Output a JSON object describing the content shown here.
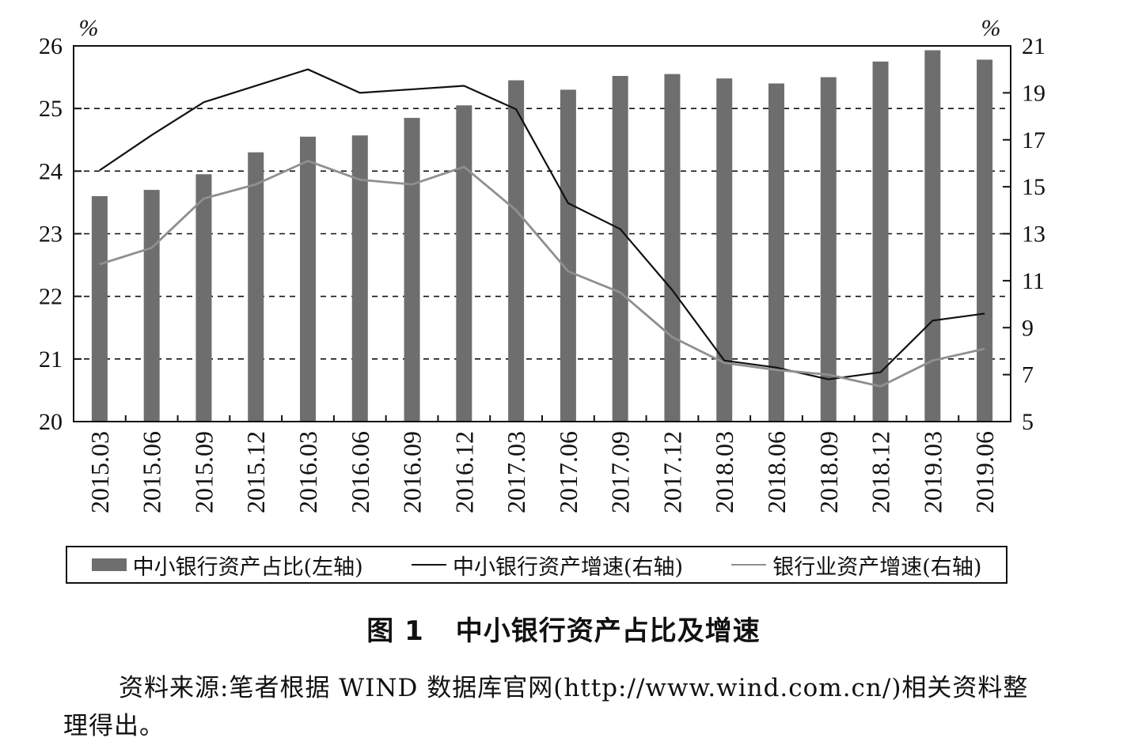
{
  "chart_data": {
    "type": "bar",
    "categories": [
      "2015.03",
      "2015.06",
      "2015.09",
      "2015.12",
      "2016.03",
      "2016.06",
      "2016.09",
      "2016.12",
      "2017.03",
      "2017.06",
      "2017.09",
      "2017.12",
      "2018.03",
      "2018.06",
      "2018.09",
      "2018.12",
      "2019.03",
      "2019.06"
    ],
    "left_axis": {
      "unit": "%",
      "ylim": [
        20,
        26
      ],
      "ticks": [
        "20",
        "21",
        "22",
        "23",
        "24",
        "25",
        "26"
      ]
    },
    "right_axis": {
      "unit": "%",
      "ylim": [
        5,
        21
      ],
      "ticks": [
        "5",
        "7",
        "9",
        "11",
        "13",
        "15",
        "17",
        "19",
        "21"
      ]
    },
    "grid": "dashed at left-axis integer ticks",
    "series": [
      {
        "name": "中小银行资产占比(左轴)",
        "kind": "bar",
        "axis": "left",
        "color": "#6e6e6e",
        "values": [
          23.6,
          23.7,
          23.95,
          24.3,
          24.55,
          24.57,
          24.85,
          25.05,
          25.45,
          25.3,
          25.52,
          25.55,
          25.48,
          25.4,
          25.5,
          25.75,
          25.93,
          25.78
        ]
      },
      {
        "name": "中小银行资产增速(右轴)",
        "kind": "line",
        "axis": "right",
        "color": "#111111",
        "values": [
          15.7,
          17.2,
          18.6,
          19.3,
          20.0,
          19.0,
          19.15,
          19.3,
          18.3,
          14.3,
          13.2,
          10.6,
          7.6,
          7.3,
          6.8,
          7.1,
          9.3,
          9.6
        ]
      },
      {
        "name": "银行业资产增速(右轴)",
        "kind": "line",
        "axis": "right",
        "color": "#8f8f8f",
        "values": [
          11.7,
          12.4,
          14.5,
          15.1,
          16.1,
          15.3,
          15.1,
          15.85,
          14.0,
          11.4,
          10.5,
          8.6,
          7.5,
          7.2,
          7.0,
          6.5,
          7.6,
          8.1
        ]
      }
    ]
  },
  "legend": {
    "bar_label": "中小银行资产占比(左轴)",
    "line1_label": "中小银行资产增速(右轴)",
    "line2_label": "银行业资产增速(右轴)"
  },
  "figure": {
    "number": "图 1",
    "title": "中小银行资产占比及增速"
  },
  "source": {
    "text": "资料来源:笔者根据 WIND 数据库官网(http://www.wind.com.cn/)相关资料整理得出。"
  }
}
